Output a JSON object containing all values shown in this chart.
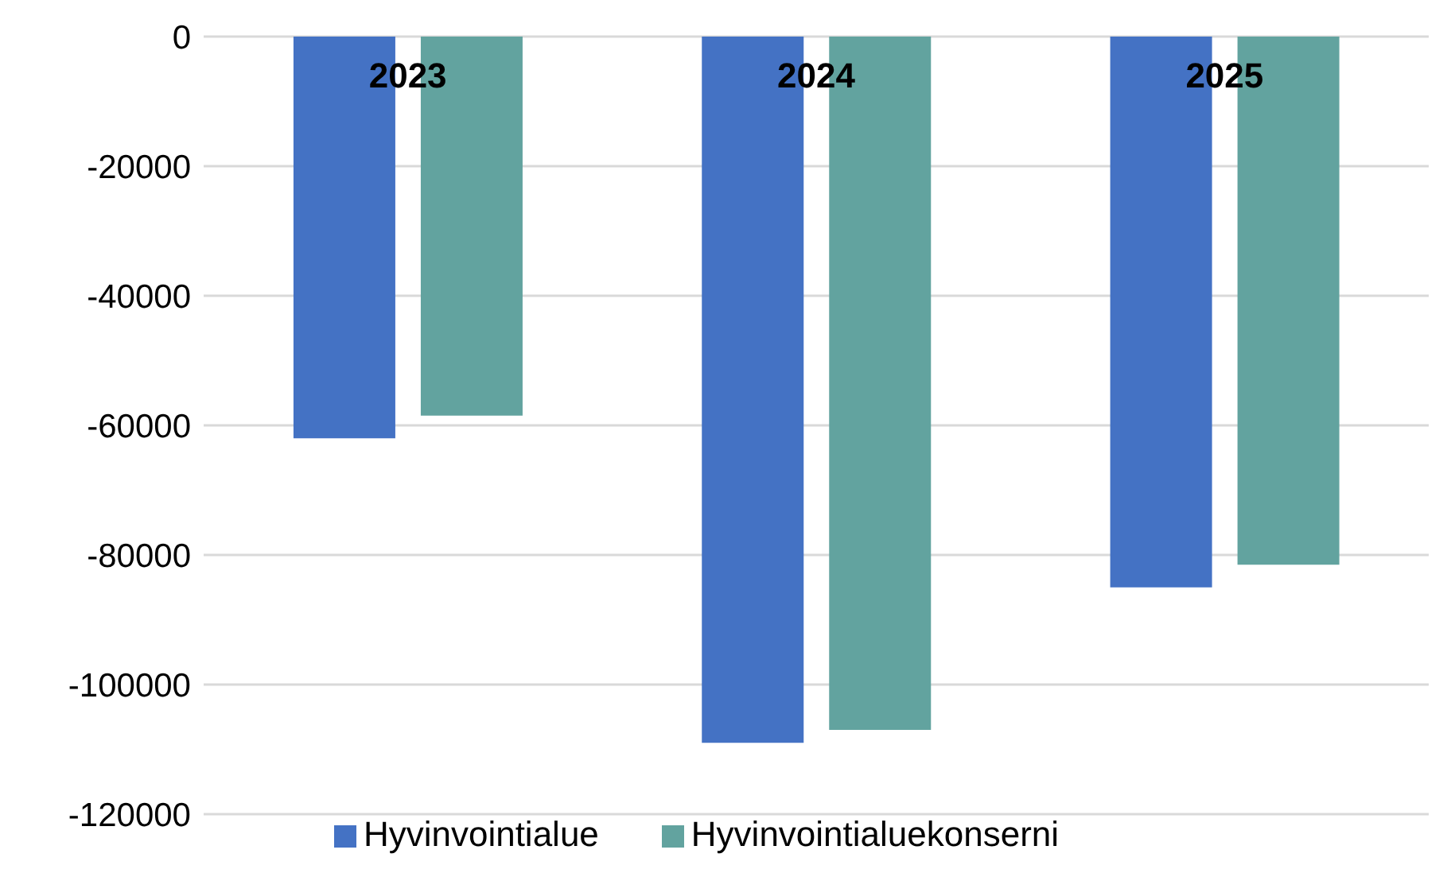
{
  "chart_data": {
    "type": "bar",
    "categories": [
      "2023",
      "2024",
      "2025"
    ],
    "series": [
      {
        "name": "Hyvinvointialue",
        "color": "#4472c4",
        "values": [
          -62000,
          -109000,
          -85000
        ]
      },
      {
        "name": "Hyvinvointialuekonserni",
        "color": "#62a39f",
        "values": [
          -58500,
          -107000,
          -81500
        ]
      }
    ],
    "ylim": [
      -120000,
      0
    ],
    "yticks": [
      -120000,
      -100000,
      -80000,
      -60000,
      -40000,
      -20000,
      0
    ],
    "grid": "y",
    "legend": "bottom"
  }
}
